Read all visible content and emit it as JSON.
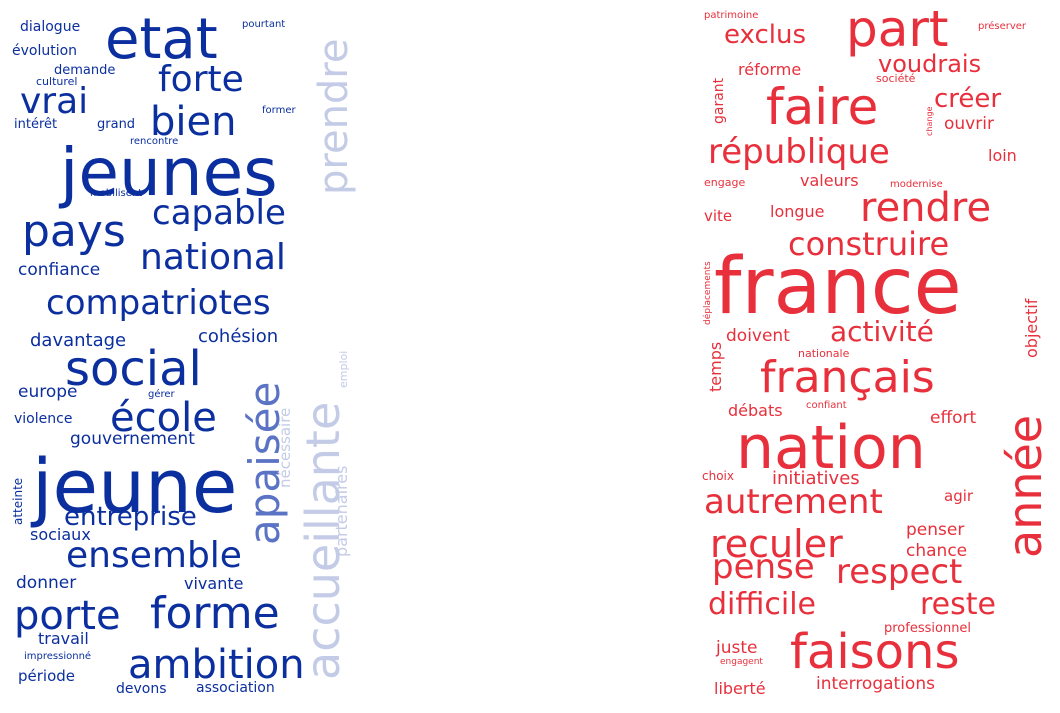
{
  "colors": {
    "background": "#ffffff",
    "left_cloud": "#0b2f9e",
    "left_cloud_faded": "#c3cbe6",
    "right_cloud": "#e8303c"
  },
  "left_cloud": {
    "words": [
      {
        "text": "jeunes",
        "weight": 1.0,
        "tone": "strong"
      },
      {
        "text": "jeune",
        "weight": 0.98,
        "tone": "strong"
      },
      {
        "text": "etat",
        "weight": 0.72,
        "tone": "strong"
      },
      {
        "text": "social",
        "weight": 0.62,
        "tone": "strong"
      },
      {
        "text": "accueillante",
        "weight": 0.55,
        "tone": "faded"
      },
      {
        "text": "apaisée",
        "weight": 0.52,
        "tone": "medium"
      },
      {
        "text": "pays",
        "weight": 0.5,
        "tone": "strong"
      },
      {
        "text": "forme",
        "weight": 0.5,
        "tone": "strong"
      },
      {
        "text": "porte",
        "weight": 0.48,
        "tone": "strong"
      },
      {
        "text": "prendre",
        "weight": 0.46,
        "tone": "faded"
      },
      {
        "text": "compatriotes",
        "weight": 0.42,
        "tone": "strong"
      },
      {
        "text": "bien",
        "weight": 0.44,
        "tone": "strong"
      },
      {
        "text": "ambition",
        "weight": 0.44,
        "tone": "strong"
      },
      {
        "text": "école",
        "weight": 0.42,
        "tone": "strong"
      },
      {
        "text": "national",
        "weight": 0.4,
        "tone": "strong"
      },
      {
        "text": "ensemble",
        "weight": 0.4,
        "tone": "strong"
      },
      {
        "text": "forte",
        "weight": 0.4,
        "tone": "strong"
      },
      {
        "text": "vrai",
        "weight": 0.38,
        "tone": "strong"
      },
      {
        "text": "capable",
        "weight": 0.36,
        "tone": "strong"
      },
      {
        "text": "entreprise",
        "weight": 0.28,
        "tone": "strong"
      },
      {
        "text": "partenaires",
        "weight": 0.18,
        "tone": "faded"
      },
      {
        "text": "nécessaire",
        "weight": 0.16,
        "tone": "faded"
      },
      {
        "text": "cohésion",
        "weight": 0.2,
        "tone": "strong"
      },
      {
        "text": "davantage",
        "weight": 0.2,
        "tone": "strong"
      },
      {
        "text": "gouvernement",
        "weight": 0.18,
        "tone": "strong"
      },
      {
        "text": "confiance",
        "weight": 0.18,
        "tone": "strong"
      },
      {
        "text": "europe",
        "weight": 0.18,
        "tone": "strong"
      },
      {
        "text": "vivante",
        "weight": 0.18,
        "tone": "strong"
      },
      {
        "text": "donner",
        "weight": 0.18,
        "tone": "strong"
      },
      {
        "text": "travail",
        "weight": 0.18,
        "tone": "strong"
      },
      {
        "text": "sociaux",
        "weight": 0.18,
        "tone": "strong"
      },
      {
        "text": "période",
        "weight": 0.16,
        "tone": "strong"
      },
      {
        "text": "violence",
        "weight": 0.15,
        "tone": "strong"
      },
      {
        "text": "devons",
        "weight": 0.15,
        "tone": "strong"
      },
      {
        "text": "association",
        "weight": 0.15,
        "tone": "strong"
      },
      {
        "text": "dialogue",
        "weight": 0.15,
        "tone": "strong"
      },
      {
        "text": "évolution",
        "weight": 0.15,
        "tone": "strong"
      },
      {
        "text": "intérêt",
        "weight": 0.13,
        "tone": "strong"
      },
      {
        "text": "grand",
        "weight": 0.13,
        "tone": "strong"
      },
      {
        "text": "demande",
        "weight": 0.13,
        "tone": "strong"
      },
      {
        "text": "culturel",
        "weight": 0.11,
        "tone": "strong"
      },
      {
        "text": "atteinte",
        "weight": 0.12,
        "tone": "strong"
      },
      {
        "text": "emploi",
        "weight": 0.11,
        "tone": "faded"
      },
      {
        "text": "pourtant",
        "weight": 0.09,
        "tone": "strong"
      },
      {
        "text": "former",
        "weight": 0.09,
        "tone": "strong"
      },
      {
        "text": "rencontre",
        "weight": 0.09,
        "tone": "strong"
      },
      {
        "text": "mobilisent",
        "weight": 0.09,
        "tone": "strong"
      },
      {
        "text": "gérer",
        "weight": 0.09,
        "tone": "strong"
      },
      {
        "text": "impressionné",
        "weight": 0.09,
        "tone": "strong"
      }
    ]
  },
  "right_cloud": {
    "words": [
      {
        "text": "france",
        "weight": 1.0
      },
      {
        "text": "nation",
        "weight": 0.82
      },
      {
        "text": "faisons",
        "weight": 0.66
      },
      {
        "text": "faire",
        "weight": 0.64
      },
      {
        "text": "part",
        "weight": 0.62
      },
      {
        "text": "année",
        "weight": 0.6
      },
      {
        "text": "français",
        "weight": 0.56
      },
      {
        "text": "république",
        "weight": 0.5
      },
      {
        "text": "reculer",
        "weight": 0.5
      },
      {
        "text": "rendre",
        "weight": 0.5
      },
      {
        "text": "autrement",
        "weight": 0.48
      },
      {
        "text": "respect",
        "weight": 0.48
      },
      {
        "text": "pense",
        "weight": 0.44
      },
      {
        "text": "construire",
        "weight": 0.44
      },
      {
        "text": "difficile",
        "weight": 0.4
      },
      {
        "text": "reste",
        "weight": 0.4
      },
      {
        "text": "activité",
        "weight": 0.38
      },
      {
        "text": "exclus",
        "weight": 0.34
      },
      {
        "text": "créer",
        "weight": 0.34
      },
      {
        "text": "voudrais",
        "weight": 0.32
      },
      {
        "text": "initiatives",
        "weight": 0.24
      },
      {
        "text": "interrogations",
        "weight": 0.22
      },
      {
        "text": "objectif",
        "weight": 0.22
      },
      {
        "text": "doivent",
        "weight": 0.22
      },
      {
        "text": "ouvrir",
        "weight": 0.22
      },
      {
        "text": "effort",
        "weight": 0.22
      },
      {
        "text": "penser",
        "weight": 0.22
      },
      {
        "text": "juste",
        "weight": 0.2
      },
      {
        "text": "chance",
        "weight": 0.2
      },
      {
        "text": "réforme",
        "weight": 0.2
      },
      {
        "text": "valeurs",
        "weight": 0.2
      },
      {
        "text": "longue",
        "weight": 0.2
      },
      {
        "text": "temps",
        "weight": 0.2
      },
      {
        "text": "loin",
        "weight": 0.2
      },
      {
        "text": "liberté",
        "weight": 0.2
      },
      {
        "text": "débats",
        "weight": 0.2
      },
      {
        "text": "vite",
        "weight": 0.2
      },
      {
        "text": "agir",
        "weight": 0.18
      },
      {
        "text": "garant",
        "weight": 0.18
      },
      {
        "text": "professionnel",
        "weight": 0.16
      },
      {
        "text": "choix",
        "weight": 0.16
      },
      {
        "text": "engage",
        "weight": 0.14
      },
      {
        "text": "société",
        "weight": 0.12
      },
      {
        "text": "nationale",
        "weight": 0.12
      },
      {
        "text": "préserver",
        "weight": 0.12
      },
      {
        "text": "patrimoine",
        "weight": 0.11
      },
      {
        "text": "modernise",
        "weight": 0.11
      },
      {
        "text": "confiant",
        "weight": 0.11
      },
      {
        "text": "engagent",
        "weight": 0.11
      },
      {
        "text": "déplacements",
        "weight": 0.1
      },
      {
        "text": "change",
        "weight": 0.08
      }
    ]
  }
}
